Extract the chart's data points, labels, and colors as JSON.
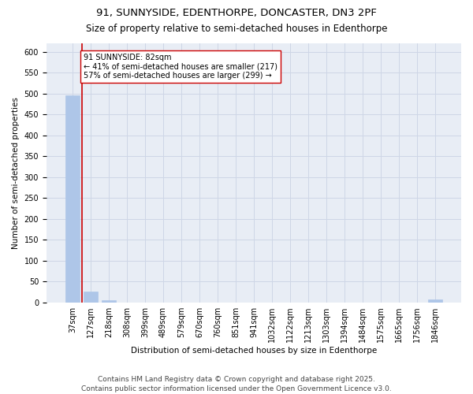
{
  "title1": "91, SUNNYSIDE, EDENTHORPE, DONCASTER, DN3 2PF",
  "title2": "Size of property relative to semi-detached houses in Edenthorpe",
  "xlabel": "Distribution of semi-detached houses by size in Edenthorpe",
  "ylabel": "Number of semi-detached properties",
  "categories": [
    "37sqm",
    "127sqm",
    "218sqm",
    "308sqm",
    "399sqm",
    "489sqm",
    "579sqm",
    "670sqm",
    "760sqm",
    "851sqm",
    "941sqm",
    "1032sqm",
    "1122sqm",
    "1213sqm",
    "1303sqm",
    "1394sqm",
    "1484sqm",
    "1575sqm",
    "1665sqm",
    "1756sqm",
    "1846sqm"
  ],
  "values": [
    495,
    27,
    5,
    0,
    0,
    0,
    0,
    0,
    0,
    0,
    0,
    0,
    0,
    0,
    0,
    0,
    0,
    0,
    0,
    0,
    7
  ],
  "bar_color": "#aec6e8",
  "vline_color": "#cc0000",
  "vline_x": 0.5,
  "annotation_text": "91 SUNNYSIDE: 82sqm\n← 41% of semi-detached houses are smaller (217)\n57% of semi-detached houses are larger (299) →",
  "annotation_box_color": "#ffffff",
  "annotation_box_edge": "#cc0000",
  "ylim": [
    0,
    620
  ],
  "yticks": [
    0,
    50,
    100,
    150,
    200,
    250,
    300,
    350,
    400,
    450,
    500,
    550,
    600
  ],
  "grid_color": "#ced6e6",
  "background_color": "#e8edf5",
  "footer": "Contains HM Land Registry data © Crown copyright and database right 2025.\nContains public sector information licensed under the Open Government Licence v3.0.",
  "title_fontsize": 9.5,
  "subtitle_fontsize": 8.5,
  "axis_label_fontsize": 7.5,
  "tick_fontsize": 7,
  "annotation_fontsize": 7,
  "footer_fontsize": 6.5
}
